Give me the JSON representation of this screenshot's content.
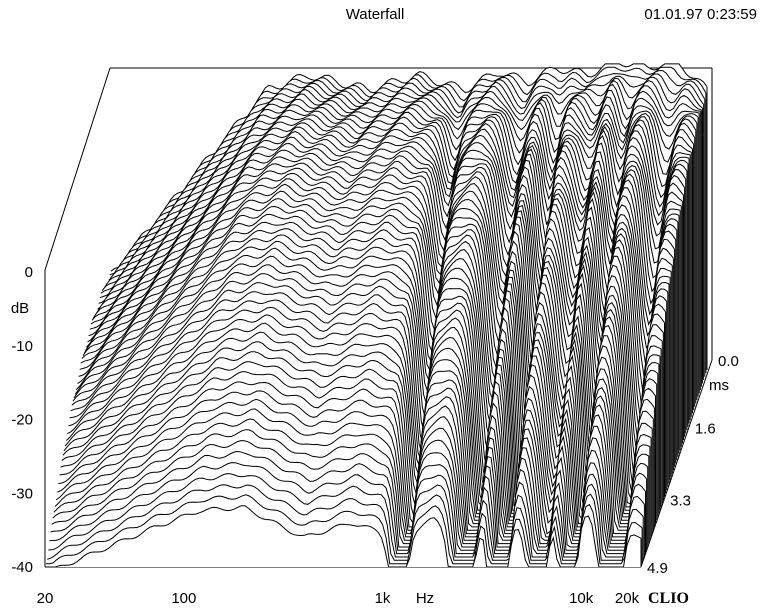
{
  "header": {
    "title": "Waterfall",
    "timestamp": "01.01.97 0:23:59"
  },
  "brand": {
    "logo_text": "CLIO"
  },
  "colors": {
    "background": "#ffffff",
    "line": "#000000"
  },
  "chart_data": {
    "type": "waterfall",
    "title": "Waterfall",
    "xlabel": "Hz",
    "ylabel": "dB",
    "zlabel": "ms",
    "x_scale": "log",
    "xlim": [
      20,
      20000
    ],
    "ylim": [
      -40,
      0
    ],
    "zlim": [
      0.0,
      4.9
    ],
    "x_ticks": [
      {
        "value": 20,
        "label": "20"
      },
      {
        "value": 100,
        "label": "100"
      },
      {
        "value": 1000,
        "label": "1k"
      },
      {
        "value": 10000,
        "label": "10k"
      },
      {
        "value": 20000,
        "label": "20k"
      }
    ],
    "y_ticks": [
      {
        "value": 0,
        "label": "0"
      },
      {
        "value": -10,
        "label": "-10"
      },
      {
        "value": -20,
        "label": "-20"
      },
      {
        "value": -30,
        "label": "-30"
      },
      {
        "value": -40,
        "label": "-40"
      }
    ],
    "z_ticks": [
      {
        "value": 0.0,
        "label": "0.0"
      },
      {
        "value": 1.6,
        "label": "1.6"
      },
      {
        "value": 3.3,
        "label": "3.3"
      },
      {
        "value": 4.9,
        "label": "4.9"
      }
    ],
    "slice_count": 60,
    "first_slice": [
      {
        "freq": 20,
        "db": -16
      },
      {
        "freq": 70,
        "db": -6
      },
      {
        "freq": 120,
        "db": -2
      },
      {
        "freq": 200,
        "db": 0
      },
      {
        "freq": 400,
        "db": -2
      },
      {
        "freq": 700,
        "db": 0
      },
      {
        "freq": 1200,
        "db": -2
      },
      {
        "freq": 1800,
        "db": 0.5
      },
      {
        "freq": 2500,
        "db": -1
      },
      {
        "freq": 3500,
        "db": 1
      },
      {
        "freq": 5000,
        "db": 0
      },
      {
        "freq": 7000,
        "db": 2
      },
      {
        "freq": 10000,
        "db": 1
      },
      {
        "freq": 14000,
        "db": 2
      },
      {
        "freq": 20000,
        "db": -2
      }
    ],
    "decay_notches_hz": [
      1200,
      2500,
      3800,
      6000,
      8500,
      14000
    ]
  }
}
